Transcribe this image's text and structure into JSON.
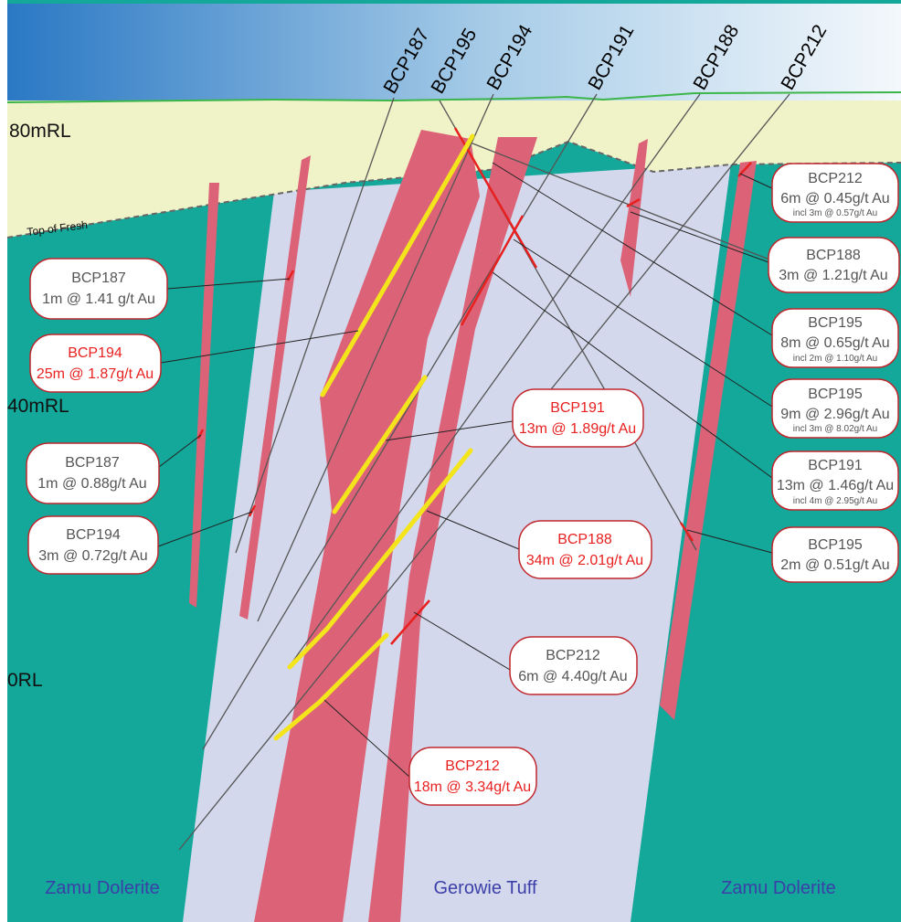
{
  "levels": {
    "rl80": "80mRL",
    "rl40": "40mRL",
    "rl0": "0RL",
    "top_of_fresh": "Top of Fresh"
  },
  "holes": [
    "BCP187",
    "BCP195",
    "BCP194",
    "BCP191",
    "BCP188",
    "BCP212"
  ],
  "units": {
    "left": "Zamu Dolerite",
    "center": "Gerowie Tuff",
    "right": "Zamu Dolerite"
  },
  "intercepts": [
    {
      "hole": "BCP187",
      "text": "1m @ 1.41 g/t Au",
      "highlight": false
    },
    {
      "hole": "BCP194",
      "text": "25m @ 1.87g/t Au",
      "highlight": true
    },
    {
      "hole": "BCP187",
      "text": "1m @ 0.88g/t Au",
      "highlight": false
    },
    {
      "hole": "BCP194",
      "text": "3m @ 0.72g/t Au",
      "highlight": false
    },
    {
      "hole": "BCP191",
      "text": "13m @ 1.89g/t Au",
      "highlight": true
    },
    {
      "hole": "BCP188",
      "text": "34m @ 2.01g/t Au",
      "highlight": true
    },
    {
      "hole": "BCP212",
      "text": "6m @ 4.40g/t Au",
      "highlight": false
    },
    {
      "hole": "BCP212",
      "text": "18m @ 3.34g/t Au",
      "highlight": true
    },
    {
      "hole": "BCP212",
      "text": "6m @ 0.45g/t Au",
      "sub": "incl 3m @ 0.57g/t Au",
      "highlight": false
    },
    {
      "hole": "BCP188",
      "text": "3m @ 1.21g/t Au",
      "highlight": false
    },
    {
      "hole": "BCP195",
      "text": "8m @ 0.65g/t Au",
      "sub": "incl 2m @ 1.10g/t Au",
      "highlight": false
    },
    {
      "hole": "BCP195",
      "text": "9m @ 2.96g/t Au",
      "sub": "incl 3m @ 8.02g/t Au",
      "highlight": false
    },
    {
      "hole": "BCP191",
      "text": "13m @ 1.46g/t Au",
      "sub": "incl 4m @ 2.95g/t Au",
      "highlight": false
    },
    {
      "hole": "BCP195",
      "text": "2m @ 0.51g/t Au",
      "highlight": false
    }
  ],
  "colors": {
    "dolerite": "#13a89a",
    "tuff": "#d4d8ec",
    "oxide": "#f0f2c8",
    "mineralisation": "#dc6377",
    "high_grade": "#f4e41c",
    "trace_red": "#e8201f",
    "sky_left": "#2a78c4",
    "sky_right": "#f4f8fc",
    "surface": "#3cb54a"
  }
}
